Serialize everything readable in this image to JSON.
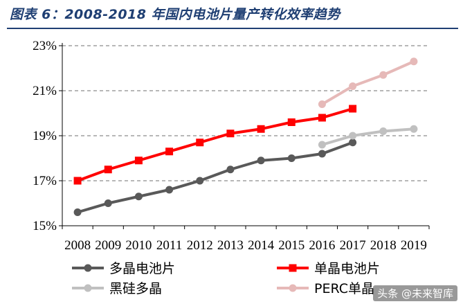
{
  "title": "图表 6：2008-2018 年国内电池片量产转化效率趋势",
  "watermark": "头条 @未来智库",
  "chart_data": {
    "type": "line",
    "categories": [
      "2008",
      "2009",
      "2010",
      "2011",
      "2012",
      "2013",
      "2014",
      "2015",
      "2016",
      "2017",
      "2018",
      "2019"
    ],
    "ylim": [
      15,
      23
    ],
    "yticks": [
      15,
      17,
      19,
      21,
      23
    ],
    "ytick_labels": [
      "15%",
      "17%",
      "19%",
      "21%",
      "23%"
    ],
    "grid": true,
    "legend": "bottom",
    "series": [
      {
        "name": "多晶电池片",
        "color": "#595959",
        "marker": "circle",
        "x": [
          2008,
          2009,
          2010,
          2011,
          2012,
          2013,
          2014,
          2015,
          2016,
          2017
        ],
        "values": [
          15.6,
          16.0,
          16.3,
          16.6,
          17.0,
          17.5,
          17.9,
          18.0,
          18.2,
          18.7
        ]
      },
      {
        "name": "单晶电池片",
        "color": "#ff0000",
        "marker": "square",
        "x": [
          2008,
          2009,
          2010,
          2011,
          2012,
          2013,
          2014,
          2015,
          2016,
          2017
        ],
        "values": [
          17.0,
          17.5,
          17.9,
          18.3,
          18.7,
          19.1,
          19.3,
          19.6,
          19.8,
          20.2
        ]
      },
      {
        "name": "黑硅多晶",
        "color": "#c0c0c0",
        "marker": "circle",
        "x": [
          2016,
          2017,
          2018,
          2019
        ],
        "values": [
          18.6,
          19.0,
          19.2,
          19.3
        ]
      },
      {
        "name": "PERC单晶",
        "color": "#e6b9b8",
        "marker": "circle",
        "x": [
          2016,
          2017,
          2018,
          2019
        ],
        "values": [
          20.4,
          21.2,
          21.7,
          22.3
        ]
      }
    ]
  }
}
